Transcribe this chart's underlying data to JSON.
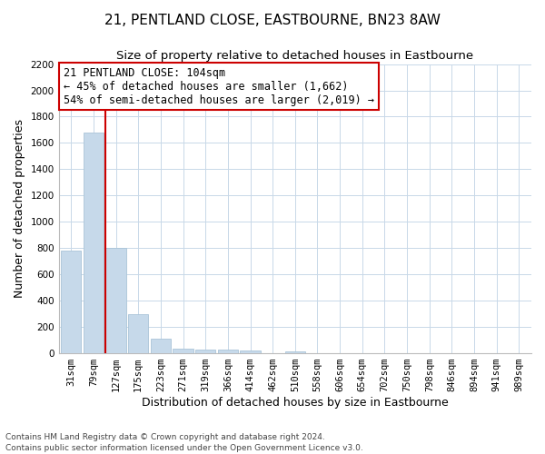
{
  "title": "21, PENTLAND CLOSE, EASTBOURNE, BN23 8AW",
  "subtitle": "Size of property relative to detached houses in Eastbourne",
  "xlabel": "Distribution of detached houses by size in Eastbourne",
  "ylabel": "Number of detached properties",
  "categories": [
    "31sqm",
    "79sqm",
    "127sqm",
    "175sqm",
    "223sqm",
    "271sqm",
    "319sqm",
    "366sqm",
    "414sqm",
    "462sqm",
    "510sqm",
    "558sqm",
    "606sqm",
    "654sqm",
    "702sqm",
    "750sqm",
    "798sqm",
    "846sqm",
    "894sqm",
    "941sqm",
    "989sqm"
  ],
  "values": [
    780,
    1680,
    800,
    295,
    110,
    35,
    30,
    30,
    20,
    0,
    15,
    0,
    0,
    0,
    0,
    0,
    0,
    0,
    0,
    0,
    0
  ],
  "bar_color": "#c6d9ea",
  "bar_edge_color": "#aac4d8",
  "vline_x": 1.55,
  "vline_color": "#cc0000",
  "annotation_line1": "21 PENTLAND CLOSE: 104sqm",
  "annotation_line2": "← 45% of detached houses are smaller (1,662)",
  "annotation_line3": "54% of semi-detached houses are larger (2,019) →",
  "annotation_box_color": "#ffffff",
  "annotation_box_edge": "#cc0000",
  "ylim": [
    0,
    2200
  ],
  "yticks": [
    0,
    200,
    400,
    600,
    800,
    1000,
    1200,
    1400,
    1600,
    1800,
    2000,
    2200
  ],
  "footnote": "Contains HM Land Registry data © Crown copyright and database right 2024.\nContains public sector information licensed under the Open Government Licence v3.0.",
  "bg_color": "#ffffff",
  "grid_color": "#c8d8e8",
  "title_fontsize": 11,
  "subtitle_fontsize": 9.5,
  "axis_label_fontsize": 9,
  "tick_fontsize": 7.5,
  "annotation_fontsize": 8.5,
  "footnote_fontsize": 6.5
}
